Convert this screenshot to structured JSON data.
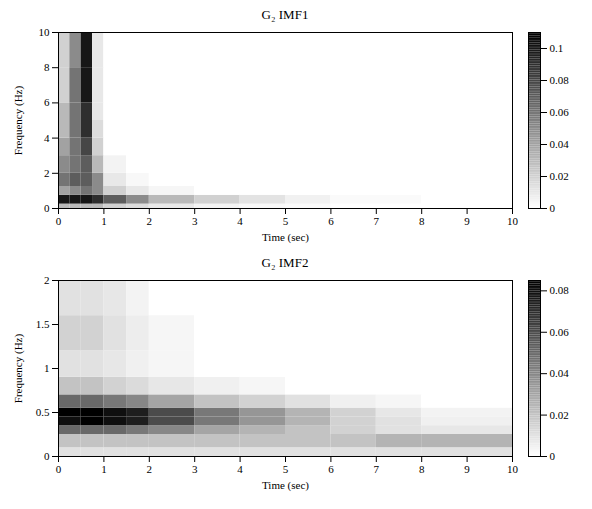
{
  "chart_data": [
    {
      "type": "heatmap",
      "title": "G₂ IMF1",
      "x_label": "Time (sec)",
      "y_label": "Frequency (Hz)",
      "xlim": [
        0,
        10
      ],
      "xticks": [
        0,
        1,
        2,
        3,
        4,
        5,
        6,
        7,
        8,
        9,
        10
      ],
      "ylim": [
        0,
        10
      ],
      "yticks": [
        0,
        2,
        4,
        6,
        8,
        10
      ],
      "x_edges": [
        0,
        0.25,
        0.5,
        0.75,
        1,
        1.5,
        2,
        3,
        4,
        5,
        6,
        8,
        10
      ],
      "y_edges": [
        0,
        0.25,
        0.75,
        1.25,
        2,
        3,
        4,
        5,
        6,
        8,
        10
      ],
      "cells": [
        [
          0.03,
          0.03,
          0.03,
          0.03,
          0.02,
          0.015,
          0.01,
          0.005,
          0.003,
          0.002,
          0,
          0
        ],
        [
          0.1,
          0.1,
          0.1,
          0.09,
          0.07,
          0.05,
          0.03,
          0.02,
          0.012,
          0.006,
          0.002,
          0
        ],
        [
          0.04,
          0.05,
          0.06,
          0.05,
          0.02,
          0.01,
          0.004,
          0,
          0,
          0,
          0,
          0
        ],
        [
          0.06,
          0.07,
          0.07,
          0.05,
          0.01,
          0.003,
          0,
          0,
          0,
          0,
          0,
          0
        ],
        [
          0.05,
          0.06,
          0.07,
          0.03,
          0.005,
          0,
          0,
          0,
          0,
          0,
          0,
          0
        ],
        [
          0.04,
          0.06,
          0.08,
          0.02,
          0,
          0,
          0,
          0,
          0,
          0,
          0,
          0
        ],
        [
          0.03,
          0.06,
          0.09,
          0.015,
          0,
          0,
          0,
          0,
          0,
          0,
          0,
          0
        ],
        [
          0.03,
          0.06,
          0.09,
          0.01,
          0,
          0,
          0,
          0,
          0,
          0,
          0,
          0
        ],
        [
          0.02,
          0.06,
          0.1,
          0.01,
          0,
          0,
          0,
          0,
          0,
          0,
          0,
          0
        ],
        [
          0.02,
          0.05,
          0.1,
          0.01,
          0,
          0,
          0,
          0,
          0,
          0,
          0,
          0
        ]
      ],
      "colorbar_lim": [
        0,
        0.11
      ],
      "colorbar_ticks": [
        0,
        0.02,
        0.04,
        0.06,
        0.08,
        0.1
      ]
    },
    {
      "type": "heatmap",
      "title": "G₂ IMF2",
      "x_label": "Time (sec)",
      "y_label": "Frequency (Hz)",
      "xlim": [
        0,
        10
      ],
      "xticks": [
        0,
        1,
        2,
        3,
        4,
        5,
        6,
        7,
        8,
        9,
        10
      ],
      "ylim": [
        0,
        2
      ],
      "yticks": [
        0,
        0.5,
        1,
        1.5,
        2
      ],
      "x_edges": [
        0,
        0.5,
        1,
        1.5,
        2,
        3,
        4,
        5,
        6,
        7,
        8,
        10
      ],
      "y_edges": [
        0,
        0.1,
        0.25,
        0.35,
        0.45,
        0.55,
        0.7,
        0.9,
        1.2,
        1.6,
        2
      ],
      "cells": [
        [
          0.01,
          0.01,
          0.01,
          0.01,
          0.01,
          0.01,
          0.01,
          0.01,
          0.01,
          0.01,
          0.01
        ],
        [
          0.02,
          0.02,
          0.02,
          0.02,
          0.02,
          0.02,
          0.02,
          0.02,
          0.02,
          0.025,
          0.025
        ],
        [
          0.05,
          0.05,
          0.05,
          0.045,
          0.04,
          0.03,
          0.025,
          0.02,
          0.015,
          0.01,
          0.008
        ],
        [
          0.08,
          0.085,
          0.08,
          0.075,
          0.06,
          0.045,
          0.035,
          0.025,
          0.015,
          0.01,
          0.005
        ],
        [
          0.085,
          0.085,
          0.08,
          0.075,
          0.06,
          0.045,
          0.035,
          0.025,
          0.015,
          0.008,
          0.004
        ],
        [
          0.05,
          0.05,
          0.045,
          0.04,
          0.03,
          0.02,
          0.015,
          0.01,
          0.005,
          0.003,
          0
        ],
        [
          0.02,
          0.02,
          0.015,
          0.012,
          0.008,
          0.005,
          0.003,
          0,
          0,
          0,
          0
        ],
        [
          0.01,
          0.01,
          0.008,
          0.005,
          0.003,
          0,
          0,
          0,
          0,
          0,
          0
        ],
        [
          0.015,
          0.015,
          0.01,
          0.006,
          0.003,
          0,
          0,
          0,
          0,
          0,
          0
        ],
        [
          0.01,
          0.01,
          0.008,
          0.004,
          0,
          0,
          0,
          0,
          0,
          0,
          0
        ]
      ],
      "colorbar_lim": [
        0,
        0.085
      ],
      "colorbar_ticks": [
        0,
        0.02,
        0.04,
        0.06,
        0.08
      ]
    }
  ]
}
